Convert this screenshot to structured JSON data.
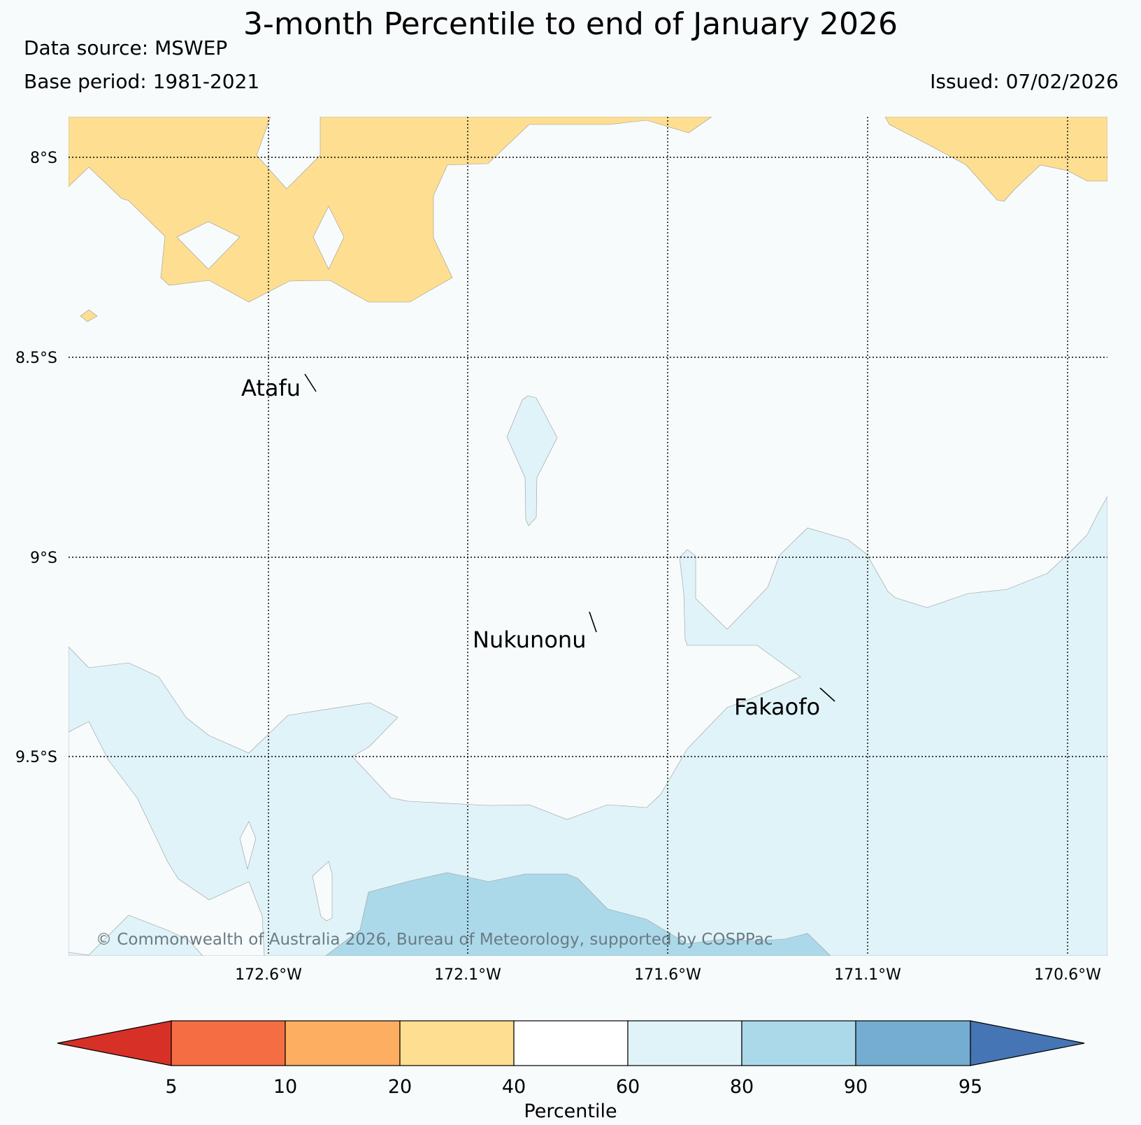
{
  "title": "3-month Percentile to end of January 2026",
  "data_source": "Data source: MSWEP",
  "base_period": "Base period: 1981-2021",
  "issued": "Issued: 07/02/2026",
  "map": {
    "lat_labels": [
      "8°S",
      "8.5°S",
      "9°S",
      "9.5°S"
    ],
    "lon_labels": [
      "172.6°W",
      "172.1°W",
      "171.6°W",
      "171.1°W",
      "170.6°W"
    ],
    "places": [
      "Atafu",
      "Nukunonu",
      "Fakaofo"
    ],
    "copyright": "© Commonwealth of Australia 2026, Bureau of Meteorology, supported by COSPPac",
    "category_colors": {
      "20-40": "#fede91",
      "40-60": "#f7fbfc",
      "60-80": "#e0f3f8",
      "80-90": "#abd9e9"
    }
  },
  "colorbar": {
    "title": "Percentile",
    "ticks": [
      "5",
      "10",
      "20",
      "40",
      "60",
      "80",
      "90",
      "95"
    ],
    "colors": [
      "#d73027",
      "#f46d43",
      "#fdae61",
      "#fede91",
      "#ffffff",
      "#e0f3f8",
      "#abd9e9",
      "#74add1",
      "#4575b4"
    ]
  }
}
